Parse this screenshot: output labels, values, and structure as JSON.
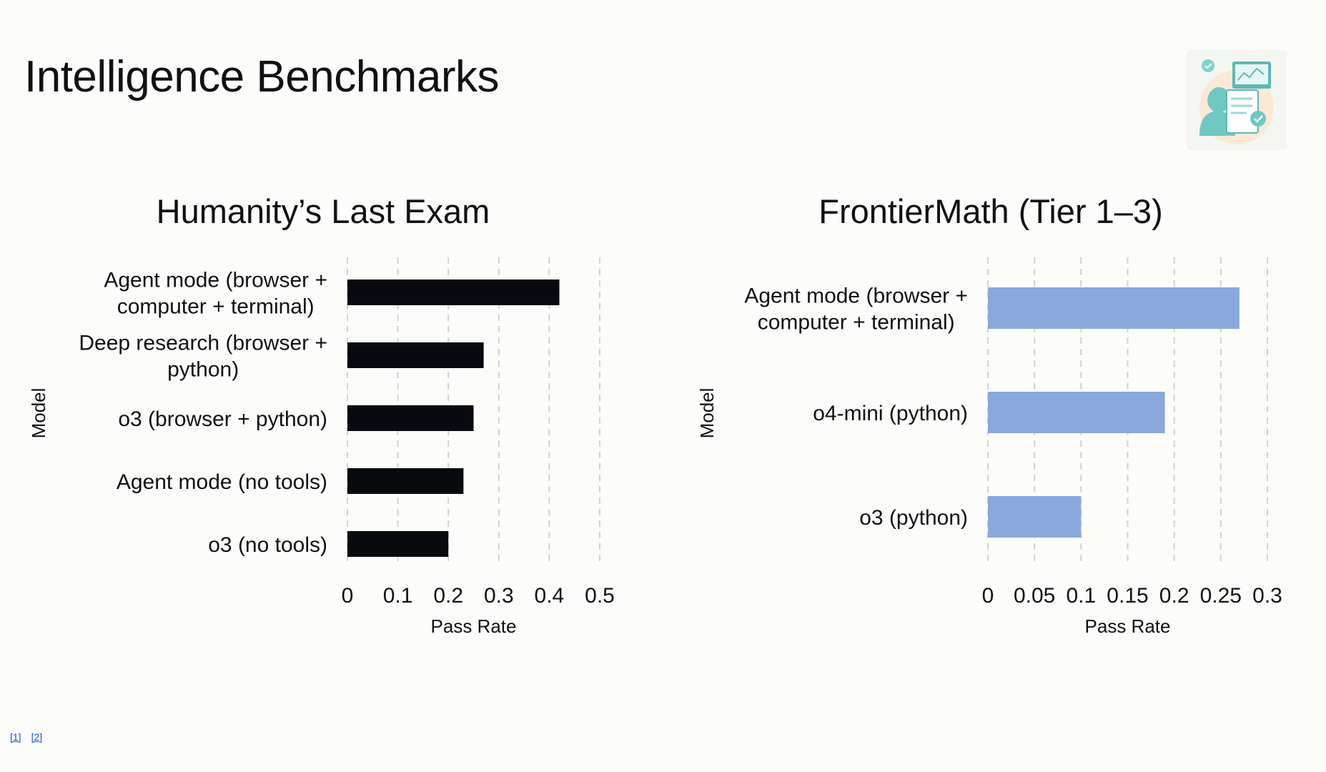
{
  "slide": {
    "title": "Intelligence Benchmarks",
    "footnotes": [
      "[1]",
      "[2]"
    ]
  },
  "chart_data": [
    {
      "type": "bar",
      "orientation": "horizontal",
      "title": "Humanity’s Last Exam",
      "xlabel": "Pass Rate",
      "ylabel": "Model",
      "categories": [
        [
          "Agent mode (browser +",
          "computer + terminal)"
        ],
        [
          "Deep research (browser +",
          "python)"
        ],
        [
          "o3 (browser + python)"
        ],
        [
          "Agent mode (no tools)"
        ],
        [
          "o3 (no tools)"
        ]
      ],
      "values": [
        0.42,
        0.27,
        0.25,
        0.23,
        0.2
      ],
      "xlim": [
        0,
        0.5
      ],
      "xticks": [
        0,
        0.1,
        0.2,
        0.3,
        0.4,
        0.5
      ],
      "xtick_labels": [
        "0",
        "0.1",
        "0.2",
        "0.3",
        "0.4",
        "0.5"
      ],
      "bar_color": "#070b10",
      "grid": "vertical dashed"
    },
    {
      "type": "bar",
      "orientation": "horizontal",
      "title": "FrontierMath (Tier 1–3)",
      "xlabel": "Pass Rate",
      "ylabel": "Model",
      "categories": [
        [
          "Agent mode (browser +",
          "computer + terminal)"
        ],
        [
          "o4-mini (python)"
        ],
        [
          "o3 (python)"
        ]
      ],
      "values": [
        0.27,
        0.19,
        0.1
      ],
      "xlim": [
        0,
        0.3
      ],
      "xticks": [
        0,
        0.05,
        0.1,
        0.15,
        0.2,
        0.25,
        0.3
      ],
      "xtick_labels": [
        "0",
        "0.05",
        "0.1",
        "0.15",
        "0.2",
        "0.25",
        "0.3"
      ],
      "bar_color": "#8aa8db",
      "grid": "vertical dashed"
    }
  ]
}
